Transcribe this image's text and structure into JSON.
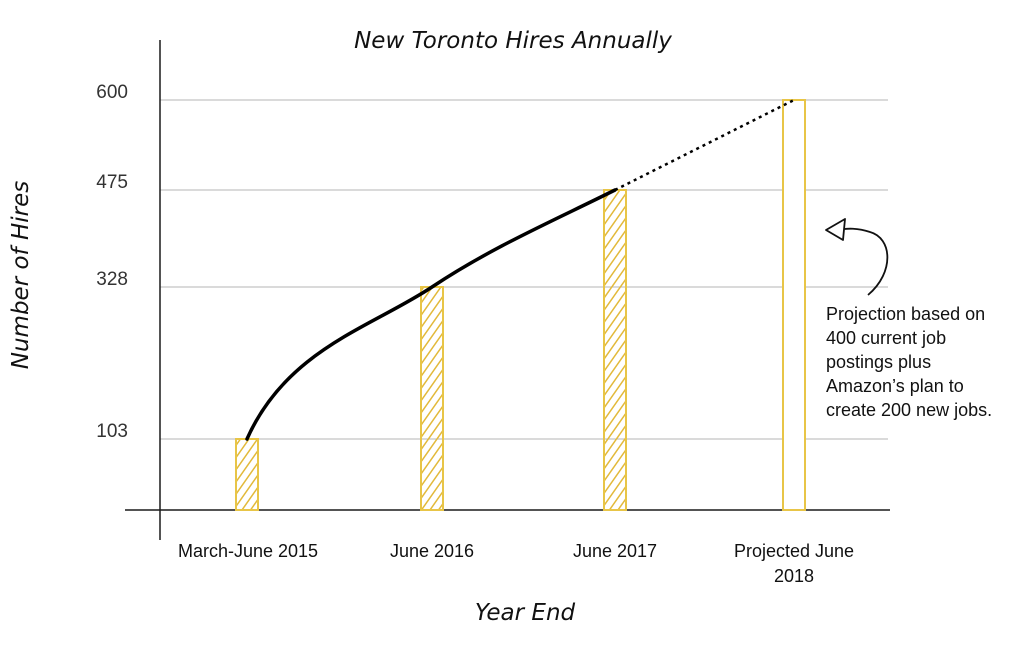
{
  "chart_data": {
    "type": "bar",
    "title": "New Toronto Hires Annually",
    "xlabel": "Year End",
    "ylabel": "Number of Hires",
    "categories": [
      "March-June 2015",
      "June 2016",
      "June 2017",
      "Projected June 2018"
    ],
    "category_lines": [
      [
        "March-June 2015"
      ],
      [
        "June 2016"
      ],
      [
        "June 2017"
      ],
      [
        "Projected June",
        "2018"
      ]
    ],
    "values": [
      103,
      328,
      475,
      600
    ],
    "projected": [
      false,
      false,
      false,
      true
    ],
    "yticks": [
      103,
      328,
      475,
      600
    ],
    "ylim": [
      0,
      600
    ],
    "grid": true,
    "trend_line": {
      "actual_through": "June 2017",
      "projected_to": "Projected June 2018",
      "projected_style": "dotted"
    },
    "annotation": {
      "lines": [
        "Projection based on",
        "400 current job",
        "postings plus",
        "Amazon’s plan to",
        "create 200 new jobs."
      ],
      "points_to": "Projected June 2018"
    }
  },
  "colors": {
    "bar": "#e8c547",
    "bar_fill": "#f2dc7a",
    "axis": "#1a1a1a",
    "grid": "#b5b5b5",
    "trend": "#000000"
  }
}
